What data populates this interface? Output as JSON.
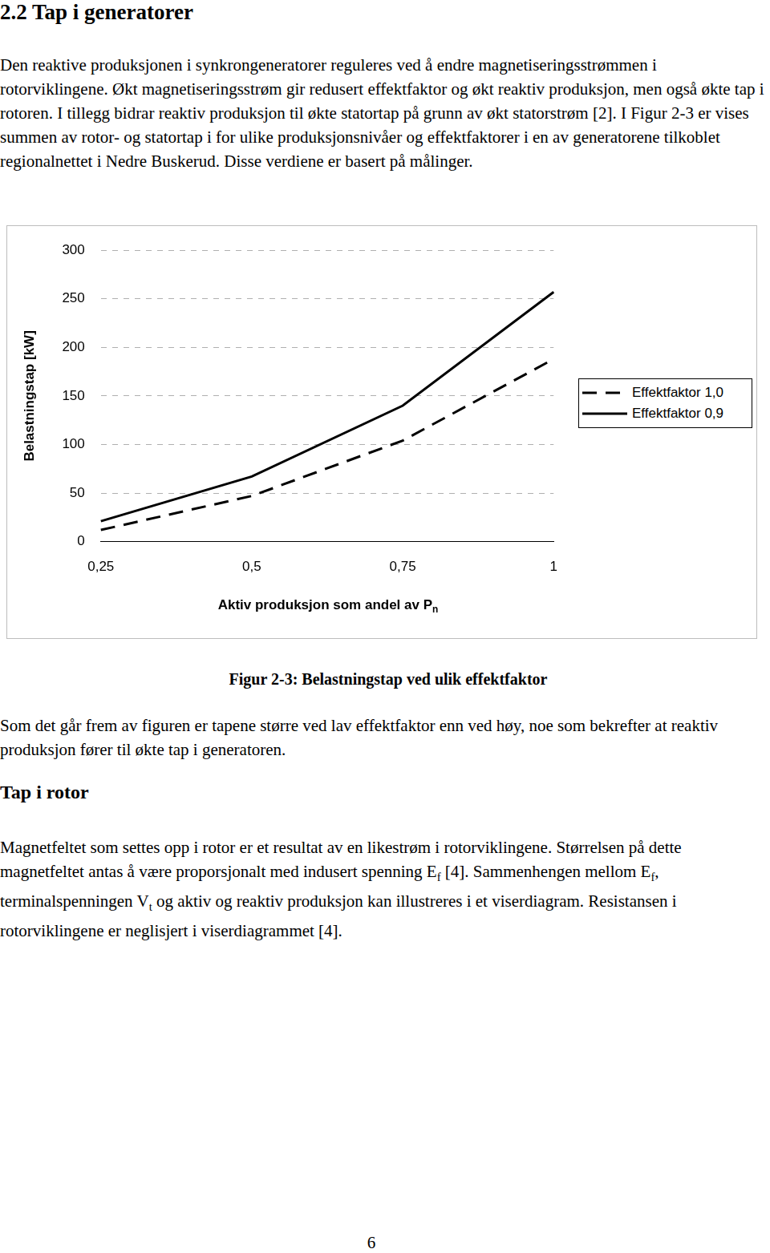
{
  "heading": "2.2 Tap i generatorer",
  "paragraph_1": [
    "Den reaktive produksjonen i synkrongeneratorer reguleres ved å endre magnetiseringsstrømmen i rotorviklingene. Økt magnetiseringsstrøm gir redusert effektfaktor og økt reaktiv produksjon, men også økte tap i rotoren. I tillegg bidrar reaktiv produksjon til økte statortap på grunn av økt statorstrøm [2]. I Figur 2-3 er vises summen av rotor- og statortap i for ulike produksjonsnivåer og effektfaktorer i en av generatorene tilkoblet regionalnettet i Nedre Buskerud. Disse verdiene er basert på målinger."
  ],
  "chart_data": {
    "type": "line",
    "x_label": [
      "Aktiv produksjon som andel av P",
      {
        "sub": "n"
      }
    ],
    "y_label": "Belastningstap [kW]",
    "categories": [
      "0,25",
      "0,5",
      "0,75",
      "1"
    ],
    "series": [
      {
        "name": "Effektfaktor 1,0",
        "color": "#000000",
        "line_style": "dashed",
        "values": [
          12,
          47,
          104,
          188
        ]
      },
      {
        "name": "Effektfaktor 0,9",
        "color": "#000000",
        "line_style": "solid",
        "values": [
          21,
          67,
          140,
          257
        ]
      }
    ],
    "ylim": [
      0,
      300
    ],
    "yticks": [
      0,
      50,
      100,
      150,
      200,
      250,
      300
    ],
    "grid": true,
    "legend": "right"
  },
  "caption": "Figur 2-3: Belastningstap ved ulik effektfaktor",
  "paragraph_2": [
    "Som det går frem av figuren er tapene større ved lav effektfaktor enn ved høy, noe som bekrefter at reaktiv produksjon fører til økte tap i generatoren."
  ],
  "subheading": "Tap i rotor",
  "paragraph_3": [
    "Magnetfeltet som settes opp i rotor er et resultat av en likestrøm i rotorviklingene. Størrelsen på dette magnetfeltet antas å være proporsjonalt med indusert spenning E",
    {
      "sub": "f"
    },
    " [4]. Sammenhengen mellom E",
    {
      "sub": "f"
    },
    ", terminalspenningen V",
    {
      "sub": "t"
    },
    " og aktiv og reaktiv produksjon kan illustreres i et viserdiagram. Resistansen i rotorviklingene er neglisjert i viserdiagrammet [4]."
  ],
  "page_number": "6"
}
